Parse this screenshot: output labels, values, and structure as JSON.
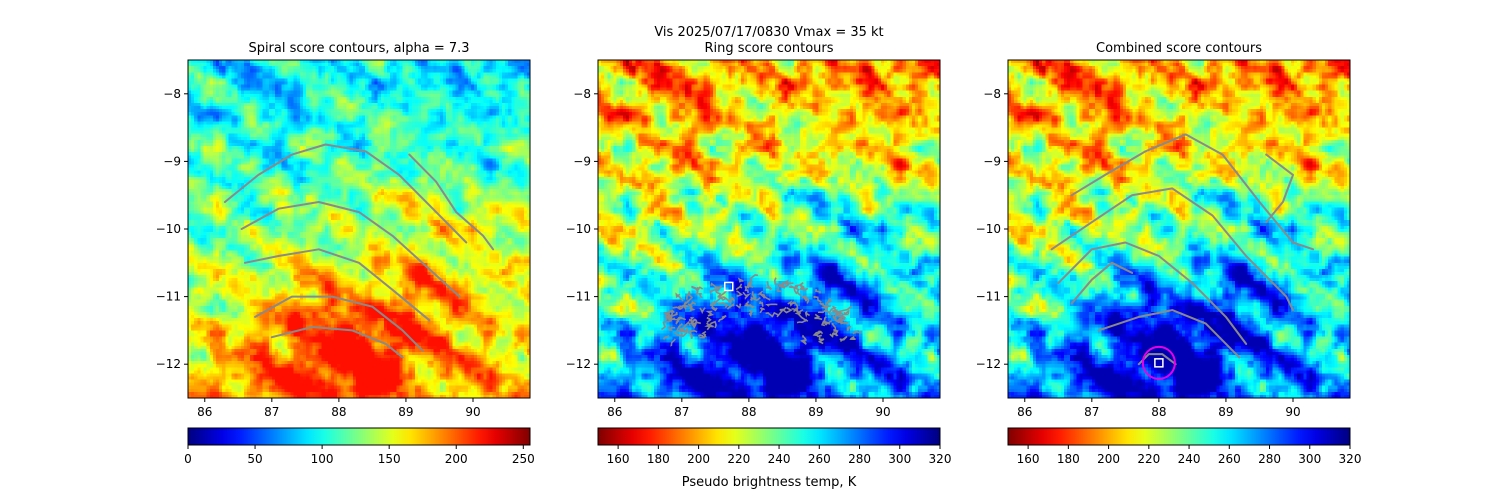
{
  "figure": {
    "suptitle_line1": "Vis  2025/07/17/0830    Vmax = 35 kt",
    "cbar_label": "Pseudo brightness temp, K"
  },
  "chart_data": [
    {
      "type": "heatmap",
      "title": "Spiral score contours, alpha =  7.3",
      "x_ticks": [
        "86",
        "87",
        "88",
        "89",
        "90"
      ],
      "y_ticks": [
        "−8",
        "−9",
        "−10",
        "−11",
        "−12"
      ],
      "xlim": [
        85.75,
        90.85
      ],
      "ylim": [
        -12.5,
        -7.5
      ],
      "colormap": "jet",
      "colorbar": {
        "ticks": [
          "0",
          "50",
          "100",
          "150",
          "200",
          "250"
        ],
        "range": [
          0,
          255
        ],
        "reversed": false
      },
      "contours": [
        [
          [
            86.3,
            -9.6
          ],
          [
            86.8,
            -9.2
          ],
          [
            87.3,
            -8.9
          ],
          [
            87.8,
            -8.75
          ],
          [
            88.4,
            -8.85
          ],
          [
            88.9,
            -9.2
          ],
          [
            89.4,
            -9.7
          ],
          [
            89.9,
            -10.2
          ]
        ],
        [
          [
            86.55,
            -10.0
          ],
          [
            87.1,
            -9.7
          ],
          [
            87.7,
            -9.6
          ],
          [
            88.3,
            -9.75
          ],
          [
            88.8,
            -10.1
          ],
          [
            89.3,
            -10.55
          ],
          [
            89.8,
            -11.0
          ]
        ],
        [
          [
            86.6,
            -10.5
          ],
          [
            87.1,
            -10.4
          ],
          [
            87.7,
            -10.3
          ],
          [
            88.3,
            -10.5
          ],
          [
            88.8,
            -10.9
          ],
          [
            89.35,
            -11.35
          ]
        ],
        [
          [
            86.75,
            -11.3
          ],
          [
            87.3,
            -11.0
          ],
          [
            87.9,
            -11.0
          ],
          [
            88.5,
            -11.15
          ],
          [
            88.95,
            -11.5
          ],
          [
            89.25,
            -11.8
          ]
        ],
        [
          [
            87.0,
            -11.6
          ],
          [
            87.6,
            -11.45
          ],
          [
            88.2,
            -11.5
          ],
          [
            88.7,
            -11.7
          ],
          [
            88.95,
            -11.9
          ]
        ],
        [
          [
            89.05,
            -8.9
          ],
          [
            89.45,
            -9.3
          ],
          [
            89.75,
            -9.75
          ],
          [
            90.15,
            -10.1
          ],
          [
            90.3,
            -10.3
          ]
        ]
      ],
      "overlays": []
    },
    {
      "type": "heatmap",
      "title": "Ring score contours",
      "x_ticks": [
        "86",
        "87",
        "88",
        "89",
        "90"
      ],
      "y_ticks": [
        "−8",
        "−9",
        "−10",
        "−11",
        "−12"
      ],
      "xlim": [
        85.75,
        90.85
      ],
      "ylim": [
        -12.5,
        -7.5
      ],
      "colormap": "jet",
      "colorbar": {
        "ticks": [
          "160",
          "180",
          "200",
          "220",
          "240",
          "260",
          "280",
          "300",
          "320"
        ],
        "range": [
          150,
          320
        ],
        "reversed": true
      },
      "ring_region": {
        "center": [
          88.1,
          -11.65
        ],
        "radii": [
          1.25,
          0.55
        ]
      },
      "overlays": [
        {
          "kind": "square",
          "at": [
            87.7,
            -10.85
          ]
        }
      ]
    },
    {
      "type": "heatmap",
      "title": "Combined score contours",
      "x_ticks": [
        "86",
        "87",
        "88",
        "89",
        "90"
      ],
      "y_ticks": [
        "−8",
        "−9",
        "−10",
        "−11",
        "−12"
      ],
      "xlim": [
        85.75,
        90.85
      ],
      "ylim": [
        -12.5,
        -7.5
      ],
      "colormap": "jet",
      "colorbar": {
        "ticks": [
          "160",
          "180",
          "200",
          "220",
          "240",
          "260",
          "280",
          "300",
          "320"
        ],
        "range": [
          150,
          320
        ],
        "reversed": true
      },
      "contours": [
        [
          [
            86.7,
            -9.5
          ],
          [
            87.2,
            -9.2
          ],
          [
            87.8,
            -8.85
          ],
          [
            88.4,
            -8.6
          ],
          [
            88.95,
            -8.9
          ],
          [
            89.5,
            -9.6
          ],
          [
            90.0,
            -10.2
          ],
          [
            90.3,
            -10.3
          ]
        ],
        [
          [
            86.4,
            -10.3
          ],
          [
            87.0,
            -9.9
          ],
          [
            87.6,
            -9.5
          ],
          [
            88.2,
            -9.4
          ],
          [
            88.8,
            -9.8
          ],
          [
            89.3,
            -10.4
          ],
          [
            89.9,
            -11.0
          ],
          [
            90.0,
            -11.2
          ]
        ],
        [
          [
            86.5,
            -10.8
          ],
          [
            87.0,
            -10.3
          ],
          [
            87.5,
            -10.2
          ],
          [
            88.0,
            -10.4
          ],
          [
            88.5,
            -10.8
          ],
          [
            89.0,
            -11.3
          ],
          [
            89.3,
            -11.7
          ]
        ],
        [
          [
            87.1,
            -11.5
          ],
          [
            87.7,
            -11.3
          ],
          [
            88.2,
            -11.2
          ],
          [
            88.7,
            -11.4
          ],
          [
            89.2,
            -11.9
          ]
        ],
        [
          [
            86.7,
            -11.1
          ],
          [
            87.0,
            -10.75
          ],
          [
            87.3,
            -10.5
          ],
          [
            87.6,
            -10.65
          ]
        ],
        [
          [
            89.6,
            -8.9
          ],
          [
            90.0,
            -9.2
          ],
          [
            89.85,
            -9.6
          ],
          [
            89.6,
            -9.9
          ]
        ],
        [
          [
            87.7,
            -12.0
          ],
          [
            87.85,
            -11.85
          ],
          [
            88.05,
            -11.85
          ],
          [
            88.25,
            -12.0
          ]
        ]
      ],
      "overlays": [
        {
          "kind": "circle",
          "at": [
            88.0,
            -11.98
          ]
        },
        {
          "kind": "square",
          "at": [
            88.0,
            -11.98
          ]
        }
      ]
    }
  ],
  "colors": {
    "contour": "#8a8a8a",
    "marker_square": "#ffffff",
    "marker_circle": "#e600e6"
  }
}
